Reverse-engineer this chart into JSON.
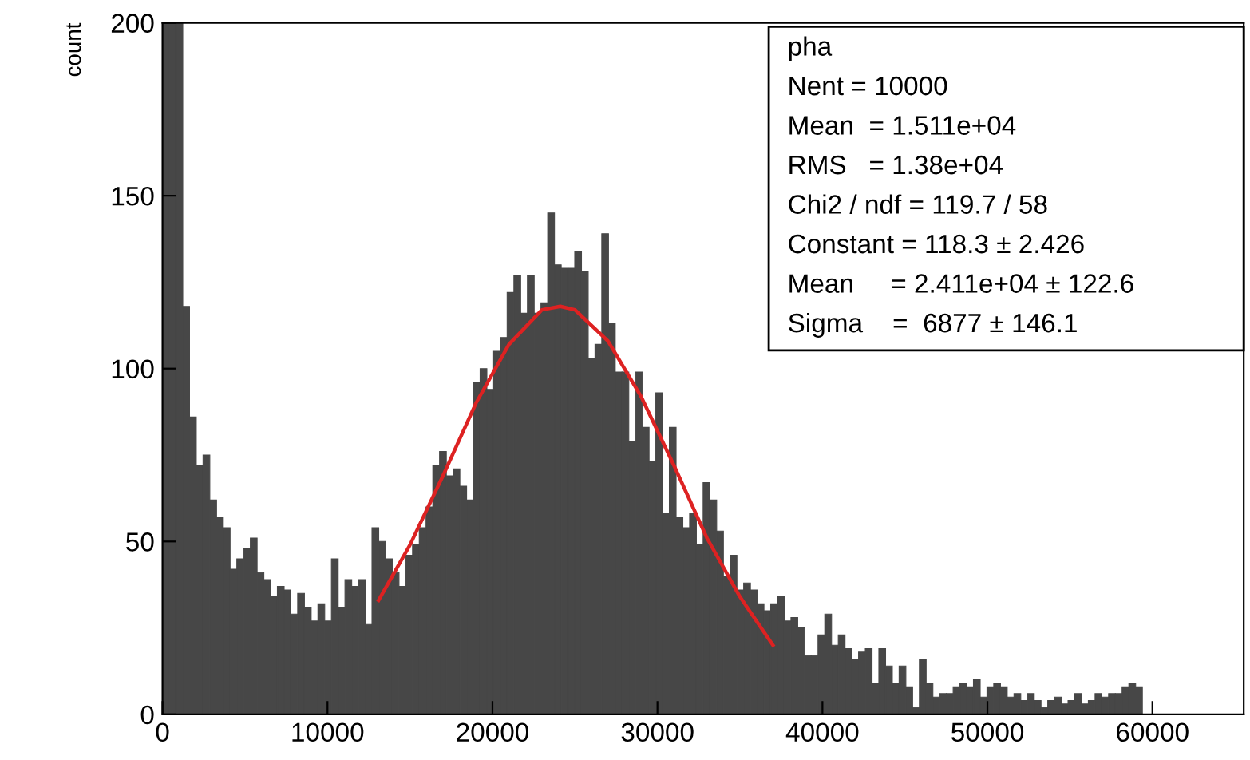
{
  "chart_data": {
    "type": "histogram",
    "ylabel": "count",
    "bins": [
      0,
      409.6,
      819.2,
      1228.8,
      1638.4,
      2048,
      2457.6,
      2867.2,
      3276.8,
      3686.4,
      4096,
      4505.6,
      4915.2,
      5324.8,
      5734.4,
      6144,
      6553.6,
      6963.2,
      7372.8,
      7782.4,
      8192,
      8601.6,
      9011.2,
      9420.8,
      9830.4,
      10240,
      10649.6,
      11059.2,
      11468.8,
      11878.4,
      12288,
      12697.6,
      13107.2,
      13516.8,
      13926.4,
      14336,
      14745.6,
      15155.2,
      15564.8,
      15974.4,
      16384,
      16793.6,
      17203.2,
      17612.8,
      18022.4,
      18432,
      18841.6,
      19251.2,
      19660.8,
      20070.4,
      20480,
      20889.6,
      21299.2,
      21708.8,
      22118.4,
      22528,
      22937.6,
      23347.2,
      23756.8,
      24166.4,
      24576,
      24985.6,
      25395.2,
      25804.8,
      26214.4,
      26624,
      27033.6,
      27443.2,
      27852.8,
      28262.4,
      28672,
      29081.6,
      29491.2,
      29900.8,
      30310.4,
      30720,
      31129.6,
      31539.2,
      31948.8,
      32358.4,
      32768,
      33177.6,
      33587.2,
      33996.8,
      34406.4,
      34816,
      35225.6,
      35635.2,
      36044.8,
      36454.4,
      36864,
      37273.6,
      37683.2,
      38092.8,
      38502.4,
      38912,
      39321.6,
      39731.2,
      40140.8,
      40550.4,
      40960,
      41369.6,
      41779.2,
      42188.8,
      42598.4,
      43008,
      43417.6,
      43827.2,
      44236.8,
      44646.4,
      45056,
      45465.6,
      45875.2,
      46284.8,
      46694.4,
      47104,
      47513.6,
      47923.2,
      48332.8,
      48742.4,
      49152,
      49561.6,
      49971.2,
      50380.8,
      50790.4,
      51200,
      51609.6,
      52019.2,
      52428.8,
      52838.4,
      53248,
      53657.6,
      54067.2,
      54476.8,
      54886.4,
      55296,
      55705.6,
      56115.2,
      56524.8,
      56934.4,
      57344,
      57753.6,
      58163.2,
      58572.8,
      58982.4,
      59392,
      59801.6,
      60211.2,
      60620.8,
      61030.4,
      61440,
      61849.6,
      62259.2,
      62668.8,
      63078.4,
      63488,
      63897.6,
      64307.2,
      64716.8,
      65126.4,
      65536
    ],
    "values": [
      200,
      200,
      200,
      118,
      86,
      72,
      75,
      62,
      57,
      54,
      42,
      45,
      48,
      51,
      41,
      39,
      34,
      37,
      36,
      29,
      35,
      31,
      27,
      32,
      27,
      45,
      31,
      39,
      37,
      39,
      26,
      54,
      50,
      45,
      41,
      37,
      46,
      49,
      54,
      60,
      72,
      76,
      69,
      71,
      66,
      62,
      96,
      100,
      94,
      105,
      109,
      122,
      127,
      116,
      127,
      116,
      119,
      145,
      130,
      129,
      129,
      134,
      128,
      103,
      107,
      139,
      113,
      99,
      99,
      79,
      99,
      83,
      73,
      93,
      58,
      83,
      57,
      54,
      58,
      49,
      67,
      62,
      53,
      40,
      46,
      36,
      38,
      36,
      32,
      30,
      32,
      34,
      27,
      28,
      25,
      17,
      17,
      23,
      29,
      20,
      23,
      19,
      16,
      18,
      19,
      9,
      19,
      14,
      9,
      14,
      8,
      2,
      16,
      9,
      5,
      6,
      6,
      8,
      9,
      8,
      10,
      5,
      8,
      9,
      8,
      5,
      6,
      4,
      6,
      4,
      2,
      4,
      5,
      3,
      4,
      6,
      3,
      4,
      6,
      5,
      6,
      6,
      8,
      9,
      8,
      0,
      0,
      0,
      0,
      0,
      0,
      0,
      0,
      0,
      0,
      0,
      0,
      0,
      0,
      0
    ],
    "color": "#474747",
    "series": [
      {
        "type": "line",
        "color": "#dd2222",
        "x": [
          13100,
          15000,
          17000,
          19000,
          21000,
          23000,
          24110,
          25000,
          27000,
          29000,
          31000,
          33000,
          35000,
          37000
        ],
        "values": [
          33,
          49,
          69,
          90,
          107,
          117,
          118,
          117,
          108,
          92,
          72,
          51,
          34,
          20
        ]
      }
    ],
    "xlim": [
      0,
      65536
    ],
    "ylim": [
      0,
      200
    ],
    "xticks": [
      0,
      10000,
      20000,
      30000,
      40000,
      50000,
      60000
    ],
    "yticks": [
      0,
      50,
      100,
      150,
      200
    ],
    "grid": false,
    "annotations": [
      "pha",
      "Nent = 10000",
      "Mean  = 1.511e+04",
      "RMS   = 1.38e+04",
      "Chi2 / ndf = 119.7 / 58",
      "Constant = 118.3 ± 2.426",
      "Mean     = 2.411e+04 ± 122.6",
      "Sigma    =  6877 ± 146.1"
    ]
  }
}
